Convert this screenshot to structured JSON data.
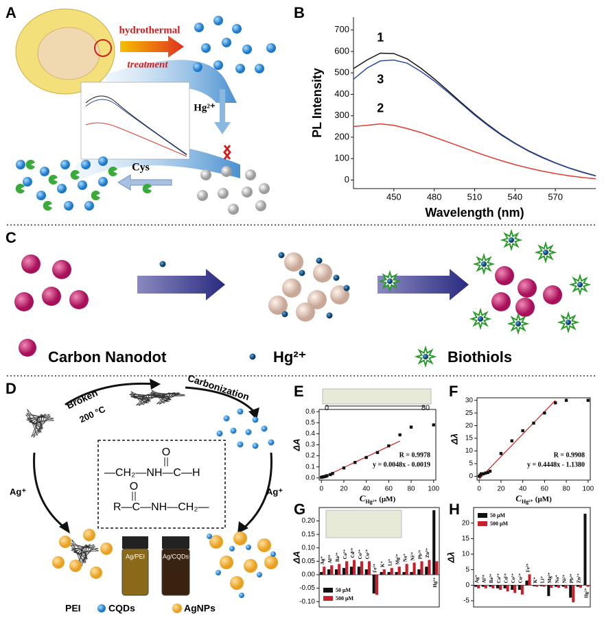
{
  "panels": [
    "A",
    "B",
    "C",
    "D",
    "E",
    "F",
    "G",
    "H"
  ],
  "diagram_a": {
    "step1": "hydrothermal",
    "step2": "treatment",
    "ion": "Hg²⁺",
    "thiol": "Cys"
  },
  "diagram_c": {
    "legend": [
      "Carbon Nanodot",
      "Hg²⁺",
      "Biothiols"
    ]
  },
  "diagram_d": {
    "step1": "Broken",
    "temperature": "200 °C",
    "step2": "Carbonization",
    "ion_left": "Ag⁺",
    "ion_right": "Ag⁺",
    "structure": [
      "O",
      "—CH₂—NH—C—H",
      "O",
      "R—C—NH—CH₂—"
    ],
    "vials": [
      "Ag/PEI",
      "Ag/CQDs"
    ],
    "legend": [
      "PEI",
      "CQDs",
      "AgNPs"
    ]
  },
  "chart_data": [
    {
      "type": "line",
      "xlabel": "Wavelength (nm)",
      "ylabel": "PL Intensity",
      "x": [
        420,
        430,
        440,
        450,
        460,
        470,
        480,
        490,
        500,
        510,
        520,
        530,
        540,
        550,
        560,
        570,
        580,
        590,
        600
      ],
      "xlim": [
        420,
        600
      ],
      "xticks": [
        450,
        480,
        510,
        540,
        570
      ],
      "ylim": [
        -40,
        760
      ],
      "yticks": [
        0,
        100,
        200,
        300,
        400,
        500,
        600,
        700
      ],
      "series": [
        {
          "name": "1",
          "color": "#111111",
          "values": [
            520,
            560,
            592,
            590,
            565,
            522,
            472,
            418,
            362,
            308,
            258,
            212,
            172,
            137,
            107,
            80,
            57,
            37,
            20
          ]
        },
        {
          "name": "2",
          "color": "#e0392b",
          "values": [
            250,
            255,
            262,
            255,
            240,
            222,
            200,
            178,
            155,
            132,
            110,
            90,
            72,
            56,
            42,
            30,
            20,
            12,
            6
          ]
        },
        {
          "name": "3",
          "color": "#2b4a9e",
          "values": [
            470,
            522,
            556,
            560,
            545,
            507,
            462,
            411,
            357,
            303,
            254,
            209,
            170,
            135,
            105,
            79,
            56,
            36,
            19
          ]
        }
      ]
    },
    {
      "type": "scatter",
      "xlabel": {
        "symbol": "C",
        "subscript": "Hg²⁺",
        "unit": "(μM)"
      },
      "ylabel": "ΔA",
      "x": [
        0,
        1,
        2,
        3,
        4,
        5,
        8,
        10,
        20,
        30,
        40,
        50,
        60,
        70,
        80,
        100
      ],
      "values": [
        0.005,
        0.008,
        0.01,
        0.012,
        0.015,
        0.02,
        0.03,
        0.04,
        0.09,
        0.14,
        0.185,
        0.23,
        0.29,
        0.39,
        0.46,
        0.48
      ],
      "color": "#111111",
      "fit": {
        "x": [
          0,
          70
        ],
        "y": [
          -0.002,
          0.334
        ],
        "color": "#d02020"
      },
      "annotations": [
        "R = 0.9978",
        "y = 0.0048x - 0.0019"
      ],
      "inset_labels": [
        "0",
        "80"
      ],
      "xlim": [
        -2,
        102
      ],
      "xticks": [
        0,
        20,
        40,
        60,
        80,
        100
      ],
      "ylim": [
        -0.02,
        0.62
      ],
      "yticks": [
        {
          "value": 0,
          "label": "0.0"
        },
        0.1,
        0.2,
        0.3,
        0.4,
        0.5,
        0.6
      ]
    },
    {
      "type": "scatter",
      "xlabel": {
        "symbol": "C",
        "subscript": "Hg²⁺",
        "unit": "(μM)"
      },
      "ylabel": "Δλ",
      "x": [
        0,
        1,
        2,
        4,
        6,
        8,
        10,
        20,
        30,
        40,
        50,
        60,
        70,
        80,
        100
      ],
      "values": [
        0,
        0.5,
        1,
        1,
        1.3,
        1.5,
        2,
        9,
        14,
        18,
        21,
        25,
        29,
        30,
        30
      ],
      "color": "#111111",
      "fit": {
        "x": [
          0,
          70
        ],
        "y": [
          -1.1,
          30
        ],
        "color": "#d02020"
      },
      "annotations": [
        "R = 0.9908",
        "y = 0.4448x - 1.1380"
      ],
      "xlim": [
        -2,
        102
      ],
      "xticks": [
        0,
        20,
        40,
        60,
        80,
        100
      ],
      "ylim": [
        -1.5,
        31
      ],
      "yticks": [
        0,
        5,
        10,
        15,
        20,
        25,
        30
      ]
    },
    {
      "type": "bar",
      "ylabel": "ΔA",
      "legend": "lower left",
      "categories": [
        "Ag⁺",
        "Al³⁺",
        "Ba²⁺",
        "Ca²⁺",
        "Cd²⁺",
        "Co²⁺",
        "Cu²⁺",
        "Fe³⁺",
        "K⁺",
        "Li⁺",
        "Mg²⁺",
        "Na⁺",
        "Ni²⁺",
        "Pb²⁺",
        "Zn²⁺",
        "Hg²⁺"
      ],
      "ylim": [
        -0.12,
        0.25
      ],
      "yticks": [
        {
          "value": -0.1,
          "label": "-0.10"
        },
        {
          "value": -0.05,
          "label": "-0.05"
        },
        {
          "value": 0,
          "label": "0.00"
        },
        {
          "value": 0.05,
          "label": "0.05"
        },
        {
          "value": 0.1,
          "label": "0.10"
        },
        {
          "value": 0.15,
          "label": "0.15"
        },
        {
          "value": 0.2,
          "label": "0.20"
        }
      ],
      "series": [
        {
          "name": "50 μM",
          "color": "#111111",
          "values": [
            0.01,
            0.02,
            0.02,
            0.025,
            0.03,
            0.03,
            0.02,
            -0.07,
            0.01,
            0.01,
            0.01,
            0.01,
            0.01,
            0.02,
            0.03,
            0.24
          ]
        },
        {
          "name": "500 μM",
          "color": "#c8202a",
          "values": [
            0.03,
            0.035,
            0.04,
            0.05,
            0.055,
            0.05,
            0.05,
            -0.075,
            0.02,
            0.025,
            0.03,
            0.04,
            0.045,
            0.05,
            0.055,
            0.05
          ]
        }
      ]
    },
    {
      "type": "bar",
      "ylabel": "Δλ",
      "legend": "upper left",
      "categories": [
        "Ag⁺",
        "Al³⁺",
        "Ba²⁺",
        "Ca²⁺",
        "Cd²⁺",
        "Co²⁺",
        "Cu²⁺",
        "Fe³⁺",
        "K⁺",
        "Li⁺",
        "Mg²⁺",
        "Na⁺",
        "Ni²⁺",
        "Pb²⁺",
        "Zn²⁺",
        "Hg²⁺"
      ],
      "ylim": [
        -7,
        25
      ],
      "yticks": [
        -5,
        0,
        5,
        10,
        15,
        20
      ],
      "series": [
        {
          "name": "50 μM",
          "color": "#111111",
          "values": [
            -0.5,
            -0.5,
            -0.5,
            -1,
            -1,
            -1.5,
            -1.5,
            1.5,
            -0.3,
            -0.3,
            -3.5,
            -0.5,
            -0.5,
            -4,
            -0.5,
            23
          ]
        },
        {
          "name": "500 μM",
          "color": "#c8202a",
          "values": [
            -1,
            -1,
            -1,
            -1.5,
            -2,
            -2.5,
            -3,
            3.5,
            -0.5,
            -0.5,
            -0.8,
            -0.8,
            -1,
            -5.5,
            -0.8,
            -0.5
          ]
        }
      ]
    }
  ]
}
